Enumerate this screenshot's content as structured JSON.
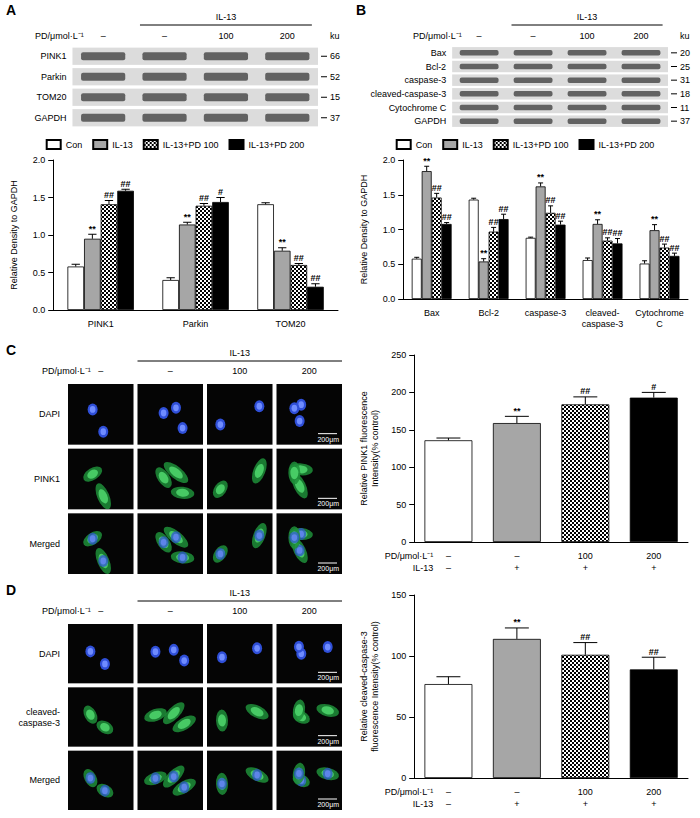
{
  "chart_data": [
    {
      "type": "bar",
      "categories": [
        "PINK1",
        "Parkin",
        "TOM20"
      ],
      "series": [
        {
          "name": "Con",
          "color": "#ffffff",
          "values": [
            0.58,
            0.4,
            1.41
          ],
          "errors": [
            0.03,
            0.03,
            0.02
          ],
          "annotations": [
            null,
            null,
            null
          ]
        },
        {
          "name": "IL-13",
          "color": "#a6a6a6",
          "values": [
            0.95,
            1.14,
            0.79
          ],
          "errors": [
            0.06,
            0.03,
            0.04
          ],
          "annotations": [
            "**",
            "**",
            "**"
          ]
        },
        {
          "name": "IL-13+PD 100",
          "color": "checkered",
          "values": [
            1.41,
            1.39,
            0.6
          ],
          "errors": [
            0.05,
            0.03,
            0.02
          ],
          "annotations": [
            "##",
            "##",
            "##"
          ]
        },
        {
          "name": "IL-13+PD 200",
          "color": "#000000",
          "values": [
            1.59,
            1.44,
            0.31
          ],
          "errors": [
            0.02,
            0.06,
            0.04
          ],
          "annotations": [
            "##",
            "#",
            "##"
          ]
        }
      ],
      "y_label": "Relative Density to GAPDH",
      "ylim": [
        0,
        2
      ],
      "yticks": [
        {
          "value": 0,
          "label": "0.0"
        },
        0.5,
        {
          "value": 1,
          "label": "1.0"
        },
        1.5,
        {
          "value": 2,
          "label": "2.0"
        }
      ],
      "legend": "top",
      "grid": false
    },
    {
      "type": "bar",
      "categories": [
        "Bax",
        "Bcl-2",
        "caspase-3",
        "cleaved-caspase-3",
        "Cytochrome C"
      ],
      "series": [
        {
          "name": "Con",
          "color": "#ffffff",
          "values": [
            0.58,
            1.43,
            0.88,
            0.56,
            0.51
          ],
          "errors": [
            0.02,
            0.02,
            0.01,
            0.03,
            0.04
          ],
          "annotations": [
            null,
            null,
            null,
            null,
            null
          ]
        },
        {
          "name": "IL-13",
          "color": "#a6a6a6",
          "values": [
            1.84,
            0.54,
            1.62,
            1.08,
            0.99
          ],
          "errors": [
            0.07,
            0.04,
            0.05,
            0.06,
            0.08
          ],
          "annotations": [
            "**",
            "**",
            "**",
            "**",
            "**"
          ]
        },
        {
          "name": "IL-13+PD 100",
          "color": "checkered",
          "values": [
            1.46,
            0.97,
            1.24,
            0.84,
            0.74
          ],
          "errors": [
            0.06,
            0.06,
            0.1,
            0.04,
            0.05
          ],
          "annotations": [
            "##",
            "##",
            "##",
            "##",
            "##"
          ]
        },
        {
          "name": "IL-13+PD 200",
          "color": "#000000",
          "values": [
            1.08,
            1.15,
            1.07,
            0.8,
            0.62
          ],
          "errors": [
            0.02,
            0.07,
            0.05,
            0.07,
            0.04
          ],
          "annotations": [
            "##",
            "##",
            "##",
            "##",
            "##"
          ]
        }
      ],
      "y_label": "Relative Density to GAPDH",
      "ylim": [
        0,
        2
      ],
      "yticks": [
        {
          "value": 0,
          "label": "0.0"
        },
        0.5,
        {
          "value": 1,
          "label": "1.0"
        },
        1.5,
        {
          "value": 2,
          "label": "2.0"
        }
      ],
      "legend": "top",
      "grid": false
    },
    {
      "type": "bar",
      "categories": [
        [
          "–",
          "–"
        ],
        [
          "–",
          "+"
        ],
        [
          "100",
          "+"
        ],
        [
          "200",
          "+"
        ]
      ],
      "category_rows": [
        "PD/μmol·L⁻¹",
        "IL-13"
      ],
      "values": [
        136,
        159,
        184,
        193
      ],
      "errors": [
        3,
        9,
        10,
        7
      ],
      "annotations": [
        null,
        "**",
        "##",
        "#"
      ],
      "colors": [
        "#ffffff",
        "#a6a6a6",
        "checkered",
        "#000000"
      ],
      "y_label": "Relative PINK1 fluorescence Intensity(% control)",
      "ylim": [
        0,
        250
      ],
      "yticks": [
        0,
        50,
        100,
        150,
        200,
        250
      ],
      "grid": false
    },
    {
      "type": "bar",
      "categories": [
        [
          "–",
          "–"
        ],
        [
          "–",
          "+"
        ],
        [
          "100",
          "+"
        ],
        [
          "200",
          "+"
        ]
      ],
      "category_rows": [
        "PD/μmol·L⁻¹",
        "IL-13"
      ],
      "values": [
        77,
        114,
        101,
        89
      ],
      "errors": [
        6,
        9,
        10,
        10
      ],
      "annotations": [
        null,
        "**",
        "##",
        "##"
      ],
      "colors": [
        "#ffffff",
        "#a6a6a6",
        "checkered",
        "#000000"
      ],
      "y_label": "Relative cleaved-caspase-3 fluorescence Intensity(% control)",
      "ylim": [
        0,
        150
      ],
      "yticks": [
        0,
        50,
        100,
        150
      ],
      "grid": false
    }
  ],
  "figure": {
    "blots": [
      {
        "letter": "A",
        "header": {
          "pd_label": "PD/μmol·L⁻¹",
          "group_label": "IL-13",
          "lanes": [
            "–",
            "–",
            "100",
            "200"
          ]
        },
        "unit": "ku",
        "rows": [
          {
            "label": "PINK1",
            "marker": 66
          },
          {
            "label": "Parkin",
            "marker": 52
          },
          {
            "label": "TOM20",
            "marker": 15
          },
          {
            "label": "GAPDH",
            "marker": 37
          }
        ]
      },
      {
        "letter": "B",
        "header": {
          "pd_label": "PD/μmol·L⁻¹",
          "group_label": "IL-13",
          "lanes": [
            "–",
            "–",
            "100",
            "200"
          ]
        },
        "unit": "ku",
        "rows": [
          {
            "label": "Bax",
            "marker": 20
          },
          {
            "label": "Bcl-2",
            "marker": 25
          },
          {
            "label": "caspase-3",
            "marker": 31
          },
          {
            "label": "cleaved-caspase-3",
            "marker": 18
          },
          {
            "label": "Cytochrome C",
            "marker": 11
          },
          {
            "label": "GAPDH",
            "marker": 37
          }
        ]
      }
    ],
    "images": [
      {
        "letter": "C",
        "header": {
          "pd_label": "PD/μmol·L⁻¹",
          "group_label": "IL-13",
          "lanes": [
            "–",
            "–",
            "100",
            "200"
          ]
        },
        "rows": [
          "DAPI",
          "PINK1",
          "Merged"
        ],
        "scale_bar": "200μm"
      },
      {
        "letter": "D",
        "header": {
          "pd_label": "PD/μmol·L⁻¹",
          "group_label": "IL-13",
          "lanes": [
            "–",
            "–",
            "100",
            "200"
          ]
        },
        "rows": [
          "DAPI",
          "cleaved-caspase-3",
          "Merged"
        ],
        "scale_bar": "200μm"
      }
    ]
  }
}
